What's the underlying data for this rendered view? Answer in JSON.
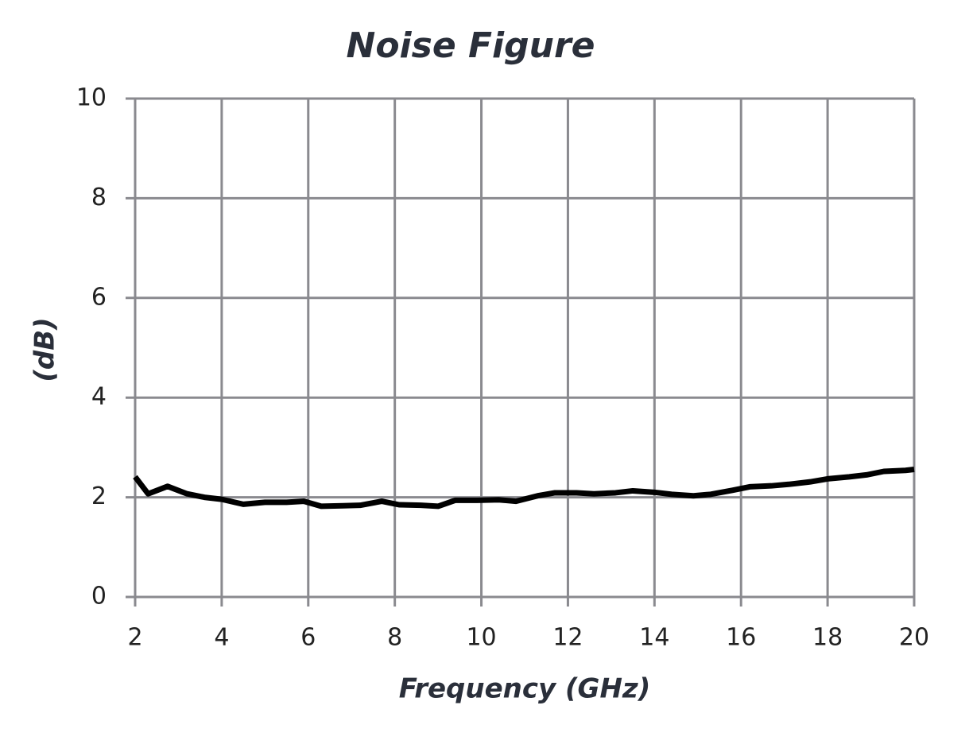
{
  "chart_data": {
    "type": "line",
    "title": "Noise Figure",
    "x_label": "Frequency (GHz)",
    "y_label": "(dB)",
    "xlim": [
      2,
      20
    ],
    "xticks": [
      2,
      4,
      6,
      8,
      10,
      12,
      14,
      16,
      18,
      20
    ],
    "ylim": [
      0,
      10
    ],
    "yticks": [
      0,
      2,
      4,
      6,
      8,
      10
    ],
    "grid": true,
    "x": [
      2,
      2.3,
      2.75,
      3.2,
      3.6,
      4.0,
      4.5,
      5.0,
      5.5,
      5.9,
      6.3,
      6.8,
      7.2,
      7.7,
      8.1,
      8.6,
      9.0,
      9.4,
      9.9,
      10.4,
      10.8,
      11.3,
      11.7,
      12.2,
      12.6,
      13.1,
      13.5,
      14.0,
      14.4,
      14.9,
      15.3,
      15.8,
      16.2,
      16.7,
      17.1,
      17.6,
      18.0,
      18.5,
      18.9,
      19.3,
      19.8,
      20
    ],
    "series": [
      {
        "name": "Noise Figure",
        "color": "#000000",
        "values": [
          2.41,
          2.07,
          2.22,
          2.07,
          2.0,
          1.96,
          1.86,
          1.9,
          1.9,
          1.92,
          1.82,
          1.83,
          1.84,
          1.92,
          1.85,
          1.84,
          1.82,
          1.94,
          1.94,
          1.95,
          1.92,
          2.03,
          2.09,
          2.09,
          2.07,
          2.09,
          2.13,
          2.1,
          2.06,
          2.03,
          2.06,
          2.14,
          2.21,
          2.23,
          2.26,
          2.31,
          2.37,
          2.41,
          2.45,
          2.52,
          2.54,
          2.56
        ]
      }
    ]
  }
}
